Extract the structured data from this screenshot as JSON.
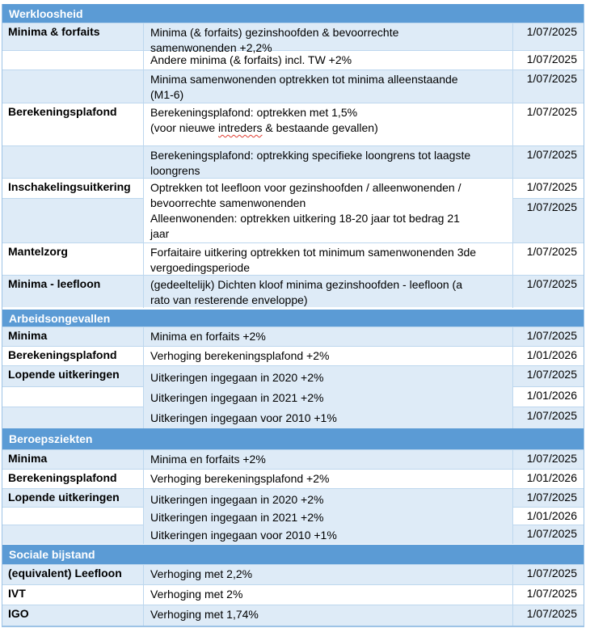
{
  "colors": {
    "header_bar": "#5B9BD5",
    "row_shaded": "#DEEBF7",
    "grid_border": "#9DC3E6",
    "spellcheck_underline": "#E03C31"
  },
  "table": {
    "sections": [
      {
        "title": "Werkloosheid",
        "rows": [
          {
            "category": "Minima & forfaits",
            "lines": [
              "Minima (& forfaits) gezinshoofden & bevoorrechte",
              "samenwonenden +2,2%"
            ],
            "date": "1/07/2025"
          },
          {
            "category": "",
            "lines": [
              "Andere minima (& forfaits) incl. TW +2%"
            ],
            "date": "1/07/2025"
          },
          {
            "category": "",
            "lines": [
              "Minima samenwonenden optrekken tot minima alleenstaande",
              "(M1-6)"
            ],
            "date": "1/07/2025"
          },
          {
            "category": "Berekeningsplafond",
            "lines": [
              "Berekeningsplafond: optrekken met 1,5%"
            ],
            "line2_pre": "(voor nieuwe ",
            "line2_misspelled": "intreders",
            "line2_post": " & bestaande gevallen)",
            "date": "1/07/2025"
          },
          {
            "category": "",
            "lines": [
              "Berekeningsplafond: optrekking specifieke loongrens tot laagste",
              "loongrens"
            ],
            "date": "1/07/2025"
          },
          {
            "category": "Inschakelingsuitkering",
            "lines": [
              "Optrekken tot leefloon voor gezinshoofden / alleenwonenden /",
              "bevoorrechte samenwonenden",
              "Alleenwonenden: optrekken uitkering 18-20 jaar tot bedrag 21",
              "jaar"
            ],
            "dates": [
              "1/07/2025",
              "1/07/2025"
            ]
          },
          {
            "category": "Mantelzorg",
            "lines": [
              "Forfaitaire uitkering optrekken tot minimum samenwonenden 3de",
              "vergoedingsperiode"
            ],
            "date": "1/07/2025"
          },
          {
            "category": "Minima - leefloon",
            "lines": [
              "(gedeeltelijk) Dichten kloof minima gezinshoofden - leefloon (a",
              "rato van resterende enveloppe)"
            ],
            "date": "1/07/2025"
          }
        ]
      },
      {
        "title": "Arbeidsongevallen",
        "rows": [
          {
            "category": "Minima",
            "lines": [
              "Minima en forfaits +2%"
            ],
            "date": "1/07/2025"
          },
          {
            "category": "Berekeningsplafond",
            "lines": [
              "Verhoging berekeningsplafond +2%"
            ],
            "date": "1/01/2026"
          },
          {
            "category": "Lopende uitkeringen",
            "lines": [
              "Uitkeringen ingegaan in 2020 +2%",
              "Uitkeringen ingegaan in 2021 +2%",
              "Uitkeringen ingegaan voor 2010 +1%"
            ],
            "dates": [
              "1/07/2025",
              "1/01/2026",
              "1/07/2025"
            ]
          }
        ]
      },
      {
        "title": "Beroepsziekten",
        "rows": [
          {
            "category": "Minima",
            "lines": [
              "Minima en forfaits +2%"
            ],
            "date": "1/07/2025"
          },
          {
            "category": "Berekeningsplafond",
            "lines": [
              "Verhoging berekeningsplafond +2%"
            ],
            "date": "1/01/2026"
          },
          {
            "category": "Lopende uitkeringen",
            "lines": [
              "Uitkeringen ingegaan in 2020 +2%",
              "Uitkeringen ingegaan in 2021 +2%",
              "Uitkeringen ingegaan voor 2010 +1%"
            ],
            "dates": [
              "1/07/2025",
              "1/01/2026",
              "1/07/2025"
            ]
          }
        ]
      },
      {
        "title": "Sociale bijstand",
        "rows": [
          {
            "category": "(equivalent) Leefloon",
            "lines": [
              "Verhoging met 2,2%"
            ],
            "date": "1/07/2025"
          },
          {
            "category": "IVT",
            "lines": [
              "Verhoging met 2%"
            ],
            "date": "1/07/2025"
          },
          {
            "category": "IGO",
            "lines": [
              "Verhoging met 1,74%"
            ],
            "date": "1/07/2025"
          }
        ]
      }
    ]
  }
}
